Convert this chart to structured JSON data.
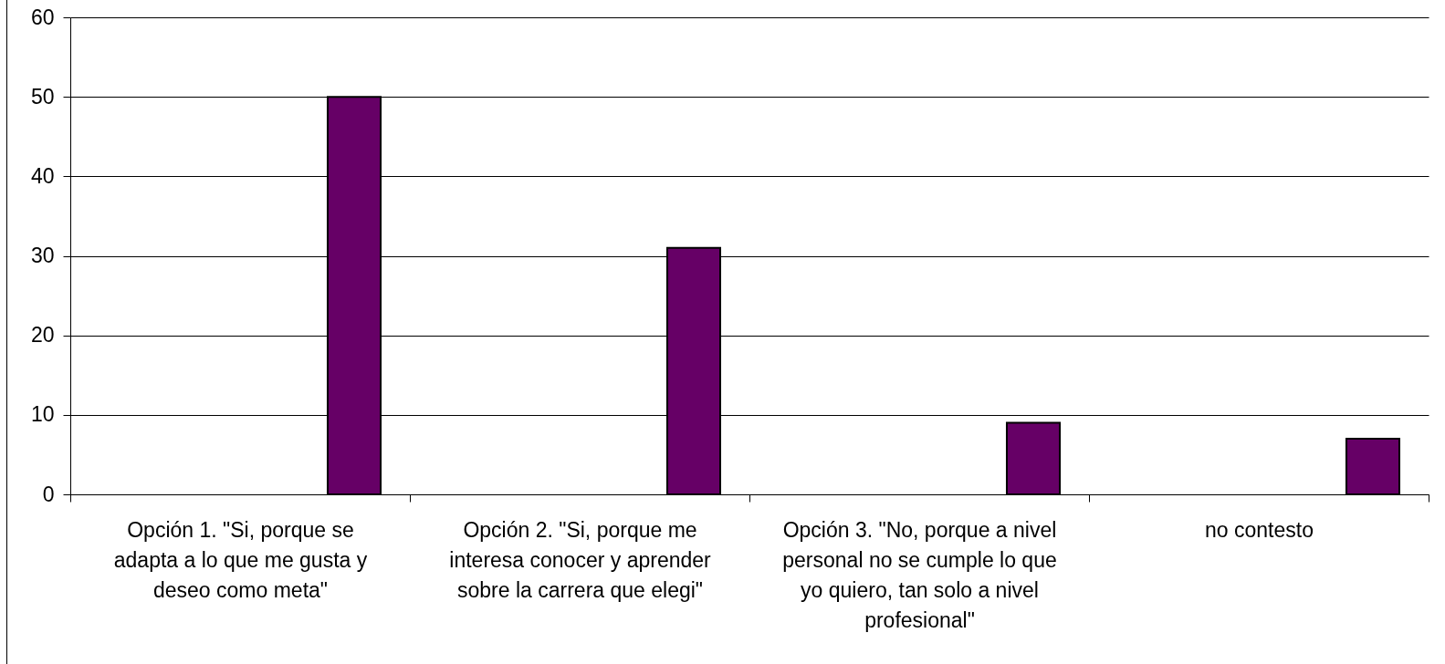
{
  "chart_data": {
    "type": "bar",
    "categories": [
      "Opción 1. \"Si, porque se adapta a lo que me gusta y deseo como meta\"",
      "Opción 2. \"Si, porque me interesa conocer y aprender sobre la carrera que elegi\"",
      "Opción 3. \"No, porque a nivel personal no se cumple lo que yo quiero, tan solo a nivel profesional\"",
      "no contesto"
    ],
    "values": [
      50,
      31,
      9,
      7
    ],
    "color": "#660066",
    "ylim": [
      0,
      60
    ],
    "yticks": [
      0,
      10,
      20,
      30,
      40,
      50,
      60
    ],
    "grid": "y"
  }
}
